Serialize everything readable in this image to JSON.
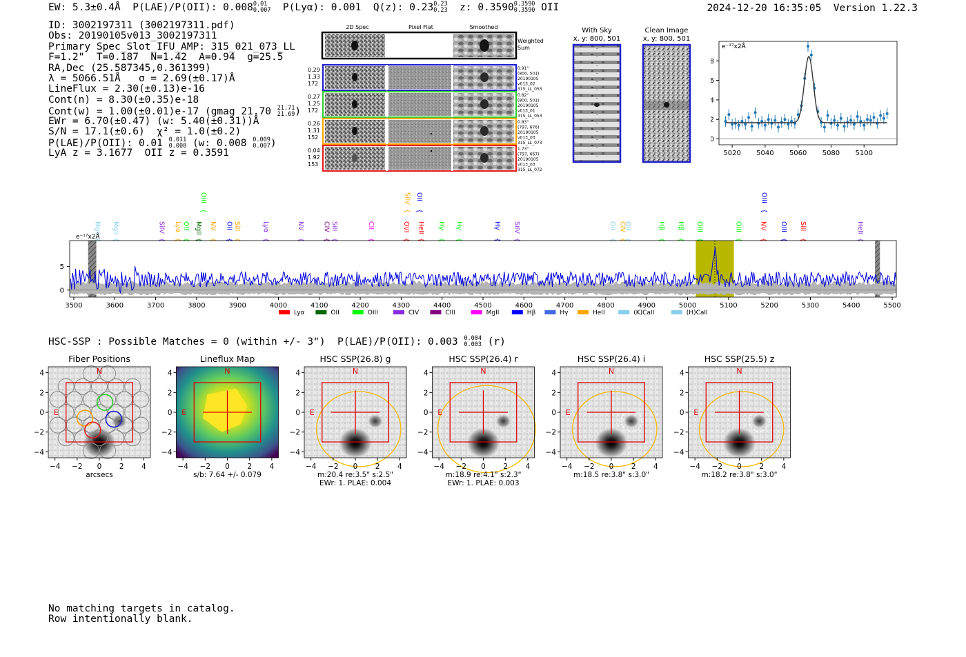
{
  "header": {
    "ew": "EW: 5.3±0.4Å",
    "plae_label": "P(LAE)/P(OII): 0.008",
    "plae_hi": "0.01",
    "plae_lo": "0.007",
    "plya": "P(Lyα): 0.001",
    "qz_label": "Q(z): 0.23",
    "qz_hi": "0.23",
    "qz_lo": "0.23",
    "z_label": "z: 0.3590",
    "z_hi": "0.3590",
    "z_lo": "0.3590",
    "z_class": "OII",
    "timestamp": "2024-12-20 16:35:05",
    "version": "Version 1.22.3"
  },
  "info": {
    "id": "ID: 3002197311 (3002197311.pdf)",
    "obs": "Obs: 20190105v013_3002197311",
    "primary": "Primary Spec_Slot_IFU_AMP: 315_021_073_LL",
    "fwhm": "F=1.2\"  T=0.187  N=1.42  A=0.94  g=25.5",
    "radec": "RA,Dec (25.587345,0.361399)",
    "lambda": "λ = 5066.51Å   σ = 2.69(±0.17)Å",
    "lineflux": "LineFlux = 2.30(±0.13)e-16",
    "contn": "Cont(n) = 8.30(±0.35)e-18",
    "contw_label": "Cont(w) = 1.00(±0.01)e-17 (gmag 21.70",
    "contw_hi": "21.71",
    "contw_lo": "21.69",
    "ewr": "EWr = 6.70(±0.47) (w: 5.40(±0.31))Å",
    "sn": "S/N = 17.1(±0.6)  χ² = 1.0(±0.2)",
    "plae_label": "P(LAE)/P(OII): 0.01",
    "plae_hi": "0.011",
    "plae_lo": "0.008",
    "plae_w_label": "(w: 0.008",
    "plae_w_hi": "0.009",
    "plae_w_lo": "0.007",
    "lya": "LyA z = 3.1677  OII z = 0.3591"
  },
  "cutouts": {
    "col_2d": "2D Spec",
    "col_flat": "Pixel Flat",
    "col_smooth": "Smoothed",
    "weighted": [
      "Weighted",
      "Sum"
    ],
    "rows": [
      {
        "left": [
          "0.29",
          "1.33",
          "172"
        ],
        "right": [
          "0.91\"",
          "(800, 501)",
          "20190105",
          "v013_02",
          "315_LL_053"
        ],
        "color": "#1f1fcc"
      },
      {
        "left": [
          "0.27",
          "1.25",
          "172"
        ],
        "right": [
          "0.82\"",
          "(800, 501)",
          "20190105",
          "v013_01",
          "315_LL_053"
        ],
        "color": "#33cc33"
      },
      {
        "left": [
          "0.26",
          "1.31",
          "152"
        ],
        "right": [
          "0.83\"",
          "(797, 676)",
          "20190105",
          "v013_03",
          "315_LL_073"
        ],
        "color": "#ffa500"
      },
      {
        "left": [
          "0.04",
          "1.92",
          "153"
        ],
        "right": [
          "1.73\"",
          "(797, 667)",
          "20190105",
          "v013_03",
          "315_LL_072"
        ],
        "color": "#e02020"
      }
    ]
  },
  "sky": {
    "with_sky_title": "With Sky",
    "with_sky_coord": "x, y: 800, 501",
    "clean_title": "Clean Image",
    "clean_coord": "x, y: 800, 501"
  },
  "colors": {
    "spectrum": "#0000dd",
    "fit": "#1f77b4",
    "highlight": "#b8b800",
    "panel_box": "#e00000",
    "aperture": "#f5b800"
  },
  "chart_data": [
    {
      "type": "scatter",
      "name": "line-fit",
      "ylabel": "e⁻¹⁷x2Å",
      "xlim": [
        5012,
        5120
      ],
      "ylim": [
        -0.6,
        10
      ],
      "xticks": [
        5020,
        5040,
        5060,
        5080,
        5100
      ],
      "yticks": [
        0,
        2,
        4,
        6,
        8
      ],
      "x": [
        5016,
        5018,
        5020,
        5022,
        5024,
        5026,
        5028,
        5030,
        5032,
        5034,
        5036,
        5038,
        5040,
        5042,
        5044,
        5046,
        5048,
        5050,
        5052,
        5054,
        5056,
        5058,
        5060,
        5062,
        5064,
        5066,
        5068,
        5070,
        5072,
        5074,
        5076,
        5078,
        5080,
        5082,
        5084,
        5086,
        5088,
        5090,
        5092,
        5094,
        5096,
        5098,
        5100,
        5102,
        5104,
        5106,
        5108,
        5110,
        5112,
        5114
      ],
      "y": [
        1.8,
        2.5,
        1.5,
        1.6,
        1.4,
        1.8,
        1.5,
        2.2,
        1.3,
        2.7,
        1.6,
        1.8,
        1.4,
        2.0,
        1.6,
        1.9,
        1.2,
        1.7,
        2.0,
        1.5,
        1.8,
        1.6,
        2.5,
        3.4,
        6.2,
        9.5,
        8.6,
        5.2,
        2.8,
        1.7,
        1.2,
        2.4,
        1.6,
        1.9,
        1.4,
        2.1,
        1.3,
        1.7,
        1.9,
        1.5,
        2.3,
        1.8,
        1.4,
        2.0,
        1.9,
        2.2,
        1.6,
        2.4,
        2.1,
        2.6
      ],
      "fit": {
        "center": 5066.51,
        "sigma": 2.69,
        "continuum": 1.66,
        "amplitude": 6.8
      }
    },
    {
      "type": "line",
      "name": "full-spectrum",
      "ylabel": "e⁻¹⁷x2Å",
      "xlim": [
        3490,
        5510
      ],
      "ylim": [
        -1.5,
        10.5
      ],
      "xticks": [
        3500,
        3600,
        3700,
        3800,
        3900,
        4000,
        4100,
        4200,
        4300,
        4400,
        4500,
        4600,
        4700,
        4800,
        4900,
        5000,
        5100,
        5200,
        5300,
        5400,
        5500
      ],
      "yticks": [
        0,
        5
      ],
      "continuum_level": 2.3,
      "emission_peak": {
        "center": 5066.5,
        "height": 9.5
      },
      "highlight_band": [
        5020,
        5113
      ],
      "hatched_bands": [
        [
          3535,
          3555
        ],
        [
          5458,
          5470
        ]
      ],
      "legend": [
        {
          "label": "Lyα",
          "color": "#ff0000"
        },
        {
          "label": "OII",
          "color": "#006400"
        },
        {
          "label": "OIII",
          "color": "#00ff00"
        },
        {
          "label": "CIV",
          "color": "#8a2be2"
        },
        {
          "label": "CIII",
          "color": "#800080"
        },
        {
          "label": "MgII",
          "color": "#ff00ff"
        },
        {
          "label": "Hβ",
          "color": "#0000ff"
        },
        {
          "label": "Hγ",
          "color": "#4169e1"
        },
        {
          "label": "HeII",
          "color": "#ffa500"
        },
        {
          "label": "(K)CaII",
          "color": "#87ceeb"
        },
        {
          "label": "(H)CaII",
          "color": "#87ceeb"
        }
      ],
      "line_labels": [
        {
          "label": "MgII",
          "x": 3553,
          "row": 1,
          "color": "#87ceeb"
        },
        {
          "label": "MgII",
          "x": 3598,
          "row": 1,
          "color": "#87ceeb"
        },
        {
          "label": "SiIV",
          "x": 3710,
          "row": 1,
          "color": "#8a2be2"
        },
        {
          "label": "Lyα",
          "x": 3750,
          "row": 1,
          "color": "#ffa500"
        },
        {
          "label": "OII",
          "x": 3770,
          "row": 1,
          "color": "#00ff00"
        },
        {
          "label": "MgII",
          "x": 3800,
          "row": 1,
          "color": "#006400"
        },
        {
          "label": "OIII",
          "x": 3812,
          "row": 0,
          "color": "#00ff00"
        },
        {
          "label": "NV",
          "x": 3836,
          "row": 1,
          "color": "#ffa500"
        },
        {
          "label": "OII",
          "x": 3875,
          "row": 1,
          "color": "#0000ff"
        },
        {
          "label": "SiII",
          "x": 3895,
          "row": 1,
          "color": "#ffa500"
        },
        {
          "label": "Lyα",
          "x": 3965,
          "row": 1,
          "color": "#8a2be2"
        },
        {
          "label": "NV",
          "x": 4050,
          "row": 1,
          "color": "#8a2be2"
        },
        {
          "label": "CIV",
          "x": 4113,
          "row": 1,
          "color": "#800080"
        },
        {
          "label": "SiII",
          "x": 4132,
          "row": 1,
          "color": "#8a2be2"
        },
        {
          "label": "CII",
          "x": 4222,
          "row": 1,
          "color": "#ff00ff"
        },
        {
          "label": "SiIV",
          "x": 4310,
          "row": 0,
          "color": "#ffa500"
        },
        {
          "label": "OII",
          "x": 4340,
          "row": 0,
          "color": "#0000ff"
        },
        {
          "label": "OVI",
          "x": 4308,
          "row": 1,
          "color": "#ff0000"
        },
        {
          "label": "HeII",
          "x": 4344,
          "row": 1,
          "color": "#ff0000"
        },
        {
          "label": "Hγ",
          "x": 4394,
          "row": 1,
          "color": "#00ff00"
        },
        {
          "label": "Hγ",
          "x": 4437,
          "row": 1,
          "color": "#00ff00"
        },
        {
          "label": "Hγ",
          "x": 4530,
          "row": 1,
          "color": "#0000ff"
        },
        {
          "label": "SiIV",
          "x": 4578,
          "row": 1,
          "color": "#8a2be2"
        },
        {
          "label": "OII",
          "x": 4812,
          "row": 1,
          "color": "#87ceeb"
        },
        {
          "label": "CIV",
          "x": 4836,
          "row": 1,
          "color": "#ffa500"
        },
        {
          "label": "OII",
          "x": 4849,
          "row": 1,
          "color": "#87ceeb"
        },
        {
          "label": "Hβ",
          "x": 4932,
          "row": 1,
          "color": "#00ff00"
        },
        {
          "label": "Hβ",
          "x": 4979,
          "row": 1,
          "color": "#00ff00"
        },
        {
          "label": "OIII",
          "x": 5025,
          "row": 1,
          "color": "#00ff00"
        },
        {
          "label": "OIII",
          "x": 5120,
          "row": 1,
          "color": "#00ff00"
        },
        {
          "label": "OIII",
          "x": 5182,
          "row": 0,
          "color": "#0000ff"
        },
        {
          "label": "NV",
          "x": 5180,
          "row": 1,
          "color": "#ff0000"
        },
        {
          "label": "OIII",
          "x": 5230,
          "row": 1,
          "color": "#0000ff"
        },
        {
          "label": "SiII",
          "x": 5277,
          "row": 1,
          "color": "#ff0000"
        },
        {
          "label": "HeII",
          "x": 5417,
          "row": 1,
          "color": "#8a2be2"
        }
      ]
    }
  ],
  "hsc": {
    "summary": "HSC-SSP : Possible Matches = 0 (within +/- 3\")  P(LAE)/P(OII): 0.003",
    "summary_hi": "0.004",
    "summary_lo": "0.003",
    "summary_tail": "(r)",
    "axis_ticks_x": [
      "−4",
      "−2",
      "0",
      "2",
      "4"
    ],
    "axis_ticks_y": [
      "4",
      "2",
      "0",
      "−2",
      "−4"
    ],
    "compass_n": "N",
    "compass_e": "E",
    "panels": [
      {
        "title": "Fiber Positions",
        "caption": [
          "arcsecs"
        ],
        "kind": "fibers"
      },
      {
        "title": "Lineflux Map",
        "caption": [
          "s/b: 7.64 +/- 0.079"
        ],
        "kind": "lineflux"
      },
      {
        "title": "HSC SSP(26.8) g",
        "caption": [
          "m:20.4  re:3.5\"  s:2.5\"",
          "EWr: 1. PLAE: 0.004"
        ],
        "kind": "image"
      },
      {
        "title": "HSC SSP(26.4) r",
        "caption": [
          "m:18.9  re:4.1\"  s:2.3\"",
          "EWr: 1. PLAE: 0.003"
        ],
        "kind": "image"
      },
      {
        "title": "HSC SSP(26.4) i",
        "caption": [
          "m:18.5  re:3.8\"  s:3.0\""
        ],
        "kind": "image"
      },
      {
        "title": "HSC SSP(25.5) z",
        "caption": [
          "m:18.2  re:3.8\"  s:3.0\""
        ],
        "kind": "image"
      }
    ]
  },
  "footer": [
    "No matching targets in catalog.",
    "Row intentionally blank."
  ]
}
